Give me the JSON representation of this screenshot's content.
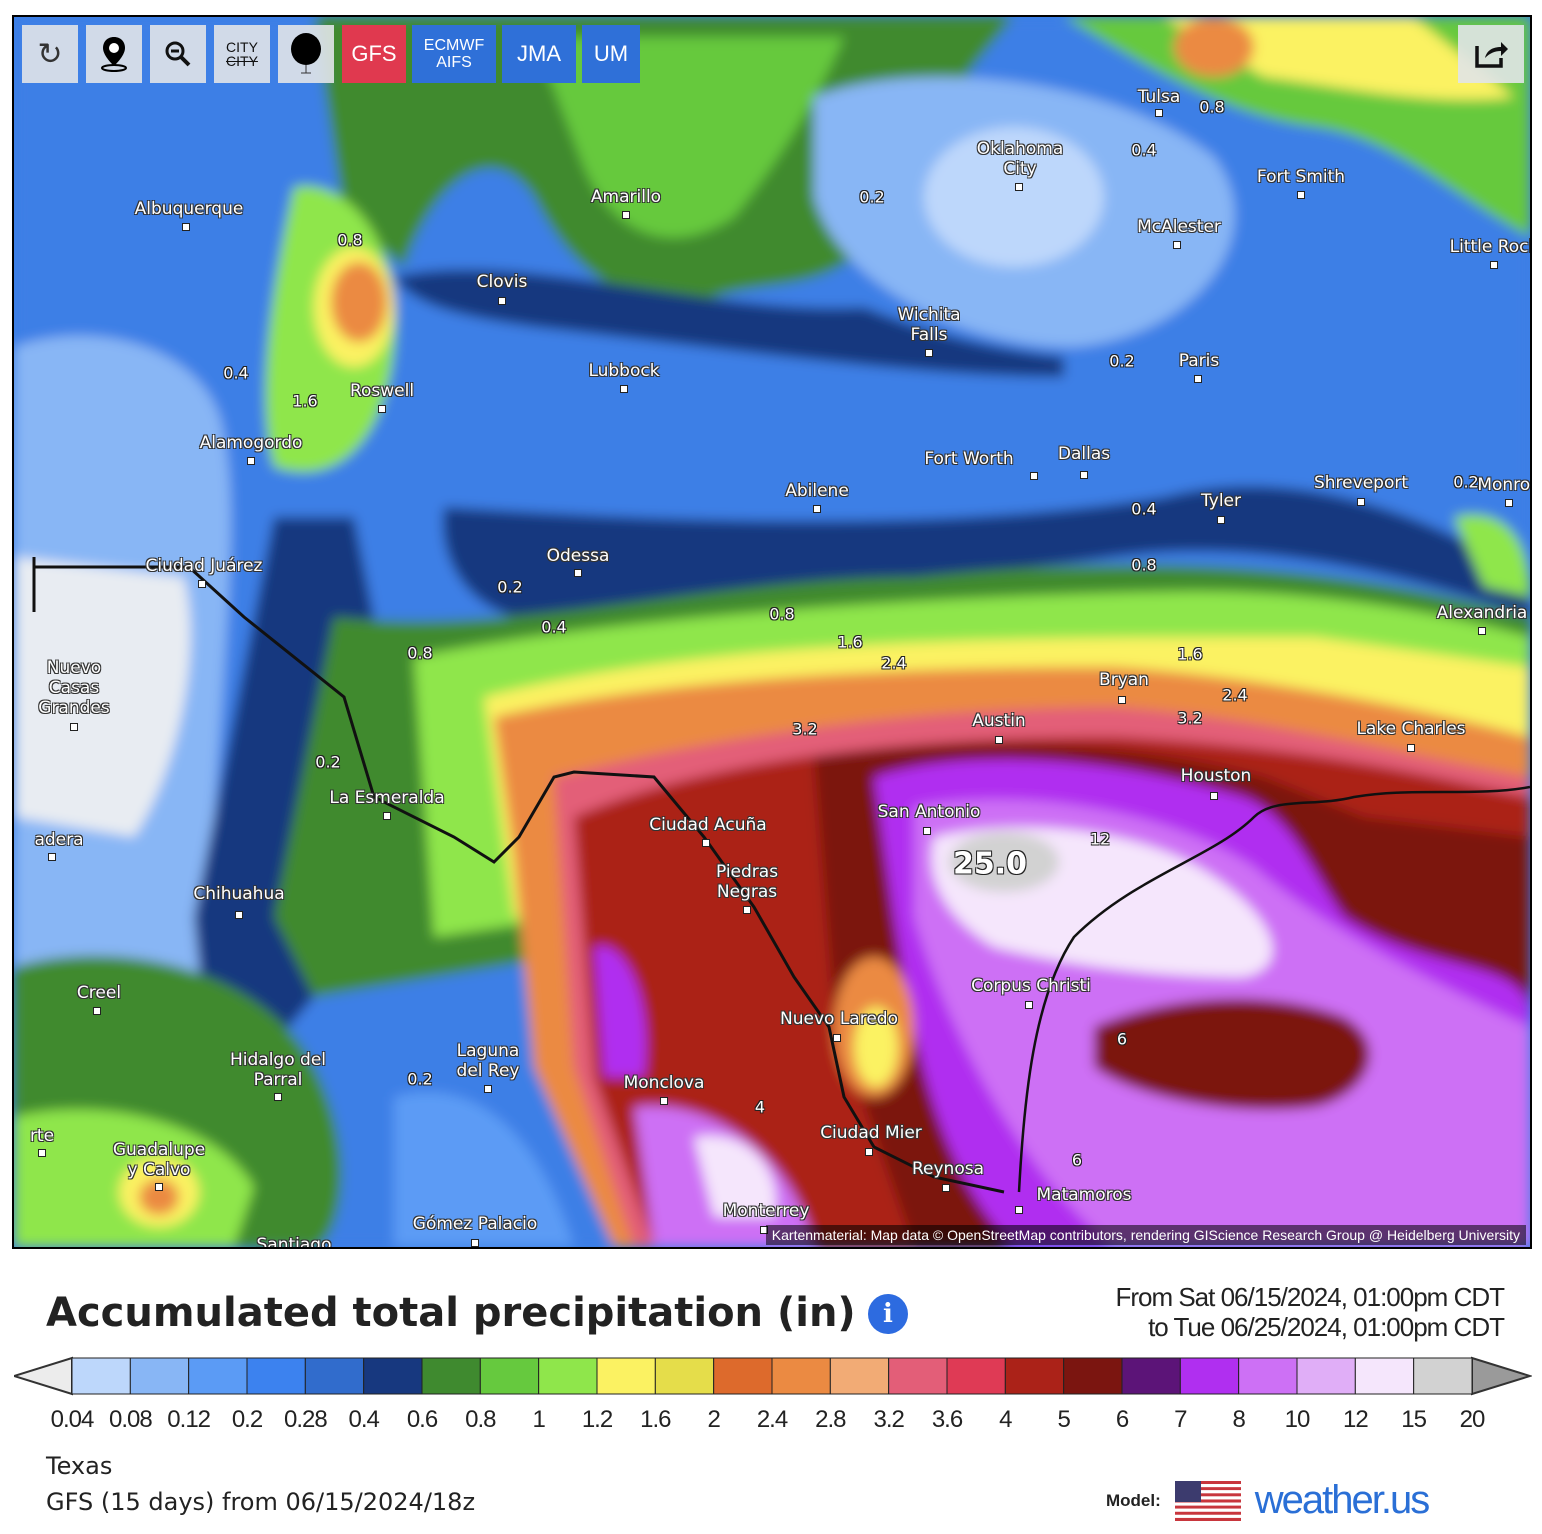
{
  "toolbar": {
    "reload_icon": "refresh-icon",
    "location_icon": "map-pin-icon",
    "zoom_out_icon": "zoom-out-icon",
    "city_label_top": "CITY",
    "city_label_bottom": "CITY",
    "balloon_icon": "balloon-icon",
    "models": [
      {
        "label": "GFS",
        "color": "#e0394f",
        "active": true
      },
      {
        "label": "ECMWF\nAIFS",
        "color": "#2f70d8"
      },
      {
        "label": "JMA",
        "color": "#2f70d8"
      },
      {
        "label": "UM",
        "color": "#2f70d8"
      }
    ],
    "share_icon": "share-icon"
  },
  "map": {
    "cities": [
      "Tulsa",
      "Oklahoma\nCity",
      "Fort Smith",
      "McAlester",
      "Little Rock",
      "Albuquerque",
      "Amarillo",
      "Clovis",
      "Wichita\nFalls",
      "Paris",
      "Lubbock",
      "Roswell",
      "Alamogordo",
      "Fort Worth",
      "Dallas",
      "Abilene",
      "Shreveport",
      "Tyler",
      "Monroe",
      "Odessa",
      "Ciudad Juárez",
      "Alexandria",
      "Nuevo\nCasas\nGrandes",
      "Bryan",
      "Austin",
      "Lake Charles",
      "Houston",
      "La Esmeralda",
      "San Antonio",
      "Ciudad Acuña",
      "adera",
      "Piedras\nNegras",
      "Chihuahua",
      "Corpus Christi",
      "Creel",
      "Nuevo Laredo",
      "Hidalgo del\nParral",
      "Laguna\ndel Rey",
      "Monclova",
      "Ciudad Mier",
      "Guadalupe\ny Calvo",
      "Reynosa",
      "Matamoros",
      "Monterrey",
      "Gómez Palacio",
      "Santiago",
      "rte"
    ],
    "contour_labels": [
      "0.8",
      "0.4",
      "0.2",
      "0.8",
      "0.4",
      "1.6",
      "0.2",
      "0.2",
      "0.4",
      "0.8",
      "0.2",
      "0.4",
      "0.8",
      "1.6",
      "2.4",
      "1.6",
      "2.4",
      "3.2",
      "0.8",
      "3.2",
      "0.2",
      "12",
      "6",
      "4",
      "6",
      "0.2"
    ],
    "max_value": "25.0",
    "attribution": "Kartenmaterial: Map data © OpenStreetMap contributors, rendering GIScience Research Group @ Heidelberg University"
  },
  "title": "Accumulated total precipitation (in)",
  "info_icon": "i",
  "range": {
    "from": "From Sat 06/15/2024, 01:00pm CDT",
    "to": "to Tue 06/25/2024, 01:00pm CDT"
  },
  "legend": {
    "colors": [
      "#bdd7fb",
      "#88b6f5",
      "#5b9bf5",
      "#3c82ef",
      "#316ccc",
      "#17387f",
      "#3f8a2f",
      "#66c93e",
      "#8fe64b",
      "#fbf262",
      "#e5dd4a",
      "#dd6a2c",
      "#eb8a42",
      "#f2ab75",
      "#e35e78",
      "#df3a55",
      "#ab2218",
      "#7b1510",
      "#5c1478",
      "#b02ff0",
      "#cd70f5",
      "#e0aef7",
      "#f5e6fc",
      "#d2d2d2"
    ],
    "under_color": "#ececec",
    "over_color": "#9a9a9a",
    "labels": [
      "0.04",
      "0.08",
      "0.12",
      "0.2",
      "0.28",
      "0.4",
      "0.6",
      "0.8",
      "1",
      "1.2",
      "1.6",
      "2",
      "2.4",
      "2.8",
      "3.2",
      "3.6",
      "4",
      "5",
      "6",
      "7",
      "8",
      "10",
      "12",
      "15",
      "20"
    ]
  },
  "footer": {
    "region": "Texas",
    "run": "GFS (15 days) from 06/15/2024/18z",
    "model_label": "Model:",
    "brand": "weather.us"
  }
}
